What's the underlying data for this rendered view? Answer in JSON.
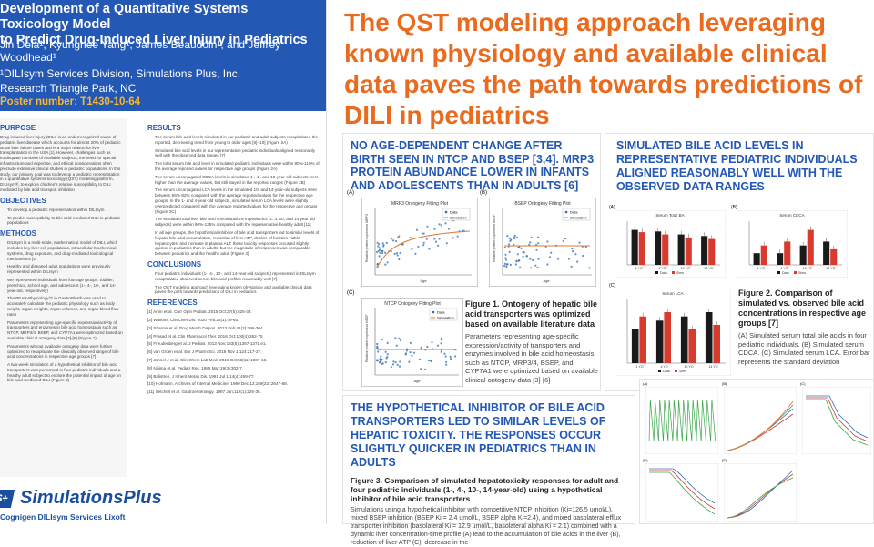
{
  "poster": {
    "title": "Development of a Quantitative Systems Toxicology Model\nto Predict Drug-Induced Liver Injury in Pediatrics",
    "authors": "Jin Dela¹, Kyunghee Yang¹, James Beaudoin¹, and Jeffrey\nWoodhead¹",
    "affiliation": "¹DILIsym Services Division, Simulations Plus, Inc.",
    "location": "Research Triangle Park, NC",
    "poster_number": "Poster number: T1430-10-64",
    "purpose": {
      "heading": "PURPOSE",
      "text": "Drug-induced liver injury (DILI) is an underrecognized cause of pediatric liver disease which accounts for almost 20% of pediatric acute liver failure cases and is a major reason for liver transplantation in the USA [1]. However, challenges such as inadequate numbers of available subjects, the need for special infrastructure and expertise, and ethical considerations often preclude extensive clinical studies in pediatric populations. In this study, our primary goal was to develop a pediatric representation in a quantitative systems toxicology (QST) modeling platform, DILIsym®, to explore children's relative susceptibility to DILI mediated by bile acid transport inhibition"
    },
    "objectives": {
      "heading": "OBJECTIVES",
      "items": [
        "To develop a pediatric representation within DILIsym",
        "To predict susceptibility to bile acid-mediated DILI in pediatric populations"
      ]
    },
    "methods": {
      "heading": "METHODS",
      "items": [
        "DILIsym is a multi-scale, mathematical model of DILI, which includes key liver cell populations, intracellular biochemical systems, drug exposure, and drug-mediated toxicological mechanisms [2]",
        "Healthy and diseased adult populations were previously represented within DILIsym",
        "We represented individuals from four age groups: toddler, preschool, school age, and adolescent (1-, 4-, 10-, and 14-year-old, respectively)",
        "The PEAR-Physiology™ in GastroPlus® was used to accurately calculate the pediatric physiology such as body weight, organ weights, organ volumes, and organ blood flow rates",
        "Parameters representing age-specific expression/activity of transporters and enzymes in bile acid homeostasis such as NTCP, MRP3/4, BSEP, and CYP7A1 were optimized based on available clinical ontogeny data [3]-[6] (Figure 1)",
        "Parameters without available ontogeny data were further optimized to recapitulate the clinically observed range of bile acid concentrations in respective age groups [7]",
        "A two-week simulation of a hypothetical inhibitor of bile acid transporters was performed in four pediatric individuals and a healthy adult subject to explore the potential impact of age on bile acid-mediated DILI (Figure 3)"
      ]
    },
    "results": {
      "heading": "RESULTS",
      "items": [
        "The serum bile acid levels simulated in our pediatric and adult subjects recapitulated the reported, decreasing trend from young to older ages [8]-[10] (Figure 2A)",
        "Simulated bile acid levels in our representative pediatric individuals aligned reasonably well with the observed data ranges [7]",
        "The total serum bile acid level in simulated pediatric individuals were within 90%-110% of the average reported values for respective age groups (Figure 2A)",
        "The serum unconjugated CDCA levels in simulated 1-, 4-, and 10-year-old subjects were higher than the average values, but still stayed in the reported ranges (Figure 2B)",
        "The serum unconjugated LCA levels in the simulated 10- and 14-year-old subjects were between 65%-82% compared with the average reported values for the respective age groups. In the 1- and 4-year-old subjects, simulated serum LCA levels were slightly overpredicted compared with the average reported values for the respective age groups (Figure 2C)",
        "The simulated total liver bile acid concentrations in pediatrics (1, 4, 10, and 14 year old subjects) were within 90%-135% compared with the representative healthy adult [11]",
        "In all age groups, the hypothetical inhibitor of bile acid transporters led to similar levels of hepatic bile acid accumulation, reduction of liver ATP, decline of function viable hepatocytes, and increase in plasma ALT; these toxicity responses occurred slightly quicker in pediatrics than in adults, but the magnitude of responses was comparable between pediatrics and the healthy adult (Figure 3)"
      ]
    },
    "conclusions": {
      "heading": "CONCLUSIONS",
      "items": [
        "Four pediatric individuals (1-, 4-, 10-, and 14-year-old subjects) represented in DILIsym recapitulated observed serum bile acid profiles reasonably well [7]",
        "The QST modeling approach leveraging known physiology and available clinical data paves the path towards predictions of DILI in pediatrics"
      ]
    },
    "references": {
      "heading": "REFERENCES",
      "items": [
        "[1] Amin et al. Curr Opin Pediatr. 2015 Oct;27(5):625-33.",
        "[2] Watkins. Clin Liver Dis. 2020 Feb;24(1):49-60.",
        "[3] Sharma et al. Drug Metab Dispos. 2013 Feb;41(2):296-304.",
        "[4] Prasad et al. Clin Pharmacol Ther. 2016 Oct;100(4):362-70.",
        "[5] Freudenberg et al. J Pediatr. 2013 Nov;163(5):1367-1371.e1.",
        "[6] van Groen et al. Eur J Pharm Sci. 2018 Nov 1;124:217-27.",
        "[7] Jahnel J et al. Clin Chem Lab Med. 2015 Oct;53(11):1807-13.",
        "[8] Nijjima et al. Pediatr Res. 1985 Mar;19(3):302-7.",
        "[9] Balistreri. J Inherit Metab Dis. 1991 Jul 1;14(4):459-77.",
        "[10] Hofmann. Archives of Internal Medicine. 1999 Dec 13;159(22):2647-58.",
        "[11] Setchell et al. Gastroenterology. 1997 Jan;112(1):226-35."
      ]
    },
    "logo": {
      "mark": "S+",
      "name": "SimulationsPlus",
      "sub": "Cognigen   DILIsym Services   Lixoft"
    }
  },
  "main_title": "The QST modeling approach leveraging known physiology and available clinical data paves the path towards predictions of DILI in pediatrics",
  "box1": {
    "heading": "NO AGE-DEPENDENT CHANGE AFTER BIRTH SEEN IN NTCP AND BSEP [3,4]. MRP3 PROTEIN ABUNDANCE LOWER IN INFANTS AND ADOLESCENTS THAN IN ADULTS [6]",
    "panel_a": "(A)",
    "panel_b": "(B)",
    "panel_c": "(C)",
    "plot_a_title": "MRP3 Ontogeny Fitting Plot",
    "plot_b_title": "BSEP Ontogeny Fitting Plot",
    "plot_c_title": "NTCP Ontogeny Fitting Plot",
    "legend_data": "Data",
    "legend_sim": "Simulation",
    "xlabel": "Age",
    "ylabel_a": "Relative protein expression MRP3",
    "ylabel_b": "Relative protein expression BSEP",
    "ylabel_c": "Relative protein expression NTCP",
    "caption_head": "Figure 1. Ontogeny of hepatic bile acid transporters was optimized based on available literature data",
    "caption_text": "Parameters representing age-specific expression/activity of transporters and enzymes involved in bile acid homeostasis such as NTCP, MRP3/4, BSEP, and CYP7A1 were optimized based on available clinical ontogeny data [3]-[6]"
  },
  "box2": {
    "heading": "SIMULATED BILE ACID LEVELS IN REPRESENTATIVE PEDIATRIC INDIVIDUALS ALIGNED REASONABLY WELL WITH THE OBSERVED DATA RANGES",
    "panel_a": "(A)",
    "panel_b": "(B)",
    "panel_c": "(C)",
    "caption_head": "Figure 2. Comparison of simulated vs. observed bile acid concentrations in respective age groups [7]",
    "caption_text": "(A) Simulated serum total bile acids in four pediatric individuals. (B) Simulated serum CDCA. (C) Simulated serum LCA. Error bar represents the standard deviation",
    "legend_data": "Data",
    "legend_sim": "Sims"
  },
  "box3": {
    "heading": "THE HYPOTHETICAL INHIBITOR OF BILE ACID TRANSPORTERS LED TO SIMILAR LEVELS OF HEPATIC TOXICITY. THE RESPONSES OCCUR SLIGHTLY QUICKER IN PEDIATRICS THAN IN ADULTS",
    "caption_head": "Figure 3. Comparison of simulated hepatotoxicity responses for adult and four pediatric individuals (1-, 4-, 10-, 14-year-old) using a hypothetical inhibitor of bile acid transporters",
    "caption_text": "Simulations using a hypothetical inhibitor with competitive NTCP inhibition (Ki=126.5 umol/L), mixed BSEP inhibition (BSEP Ki = 2.4 umol/L, BSEP alpha Ki=2.4), and mixed basolateral efflux transporter inhibition (basolateral Ki = 12.9 umol/L, basolateral alpha Ki = 2.1) combined with a dynamic liver concentration-time profile (A) lead to the accumulation of bile acids in the liver (B), reduction of liver ATP (C), decrease in the"
  },
  "box4": {
    "panel_a": "(A)",
    "panel_b": "(B)",
    "panel_c": "(C)",
    "panel_d": "(D)",
    "panel_e": "(E)"
  },
  "colors": {
    "poster_blue": "#2358b5",
    "accent_orange": "#ea6a1e",
    "poster_number_yellow": "#f7b733",
    "bar_dark": "#1a1a1a",
    "bar_red": "#d83a2e"
  },
  "chart_data": [
    {
      "type": "scatter",
      "title": "MRP3 Ontogeny Fitting Plot",
      "series": [
        {
          "name": "Data"
        },
        {
          "name": "Simulation"
        }
      ]
    },
    {
      "type": "scatter",
      "title": "BSEP Ontogeny Fitting Plot",
      "series": [
        {
          "name": "Data"
        },
        {
          "name": "Simulation"
        }
      ]
    },
    {
      "type": "scatter",
      "title": "NTCP Ontogeny Fitting Plot",
      "series": [
        {
          "name": "Data"
        },
        {
          "name": "Simulation"
        }
      ]
    },
    {
      "type": "bar",
      "title": "Serum Total BA",
      "categories": [
        "1 YO",
        "4 YO",
        "10 YO",
        "14 YO"
      ],
      "series": [
        {
          "name": "Data",
          "values": [
            4.6,
            4.4,
            4.0,
            3.8
          ]
        },
        {
          "name": "Sims",
          "values": [
            4.3,
            4.0,
            3.6,
            3.4
          ]
        }
      ]
    },
    {
      "type": "bar",
      "title": "Serum CDCA",
      "categories": [
        "1 YO",
        "4 YO",
        "10 YO",
        "14 YO"
      ],
      "series": [
        {
          "name": "Data",
          "values": [
            0.15,
            0.15,
            0.25,
            0.3
          ]
        },
        {
          "name": "Sims",
          "values": [
            0.25,
            0.3,
            0.45,
            0.2
          ]
        }
      ]
    },
    {
      "type": "bar",
      "title": "Serum LCA",
      "categories": [
        "1 YO",
        "4 YO",
        "10 YO",
        "14 YO"
      ],
      "series": [
        {
          "name": "Data",
          "values": [
            0.4,
            0.5,
            0.55,
            0.6
          ]
        },
        {
          "name": "Sims",
          "values": [
            0.55,
            0.6,
            0.4,
            0.45
          ]
        }
      ]
    }
  ]
}
